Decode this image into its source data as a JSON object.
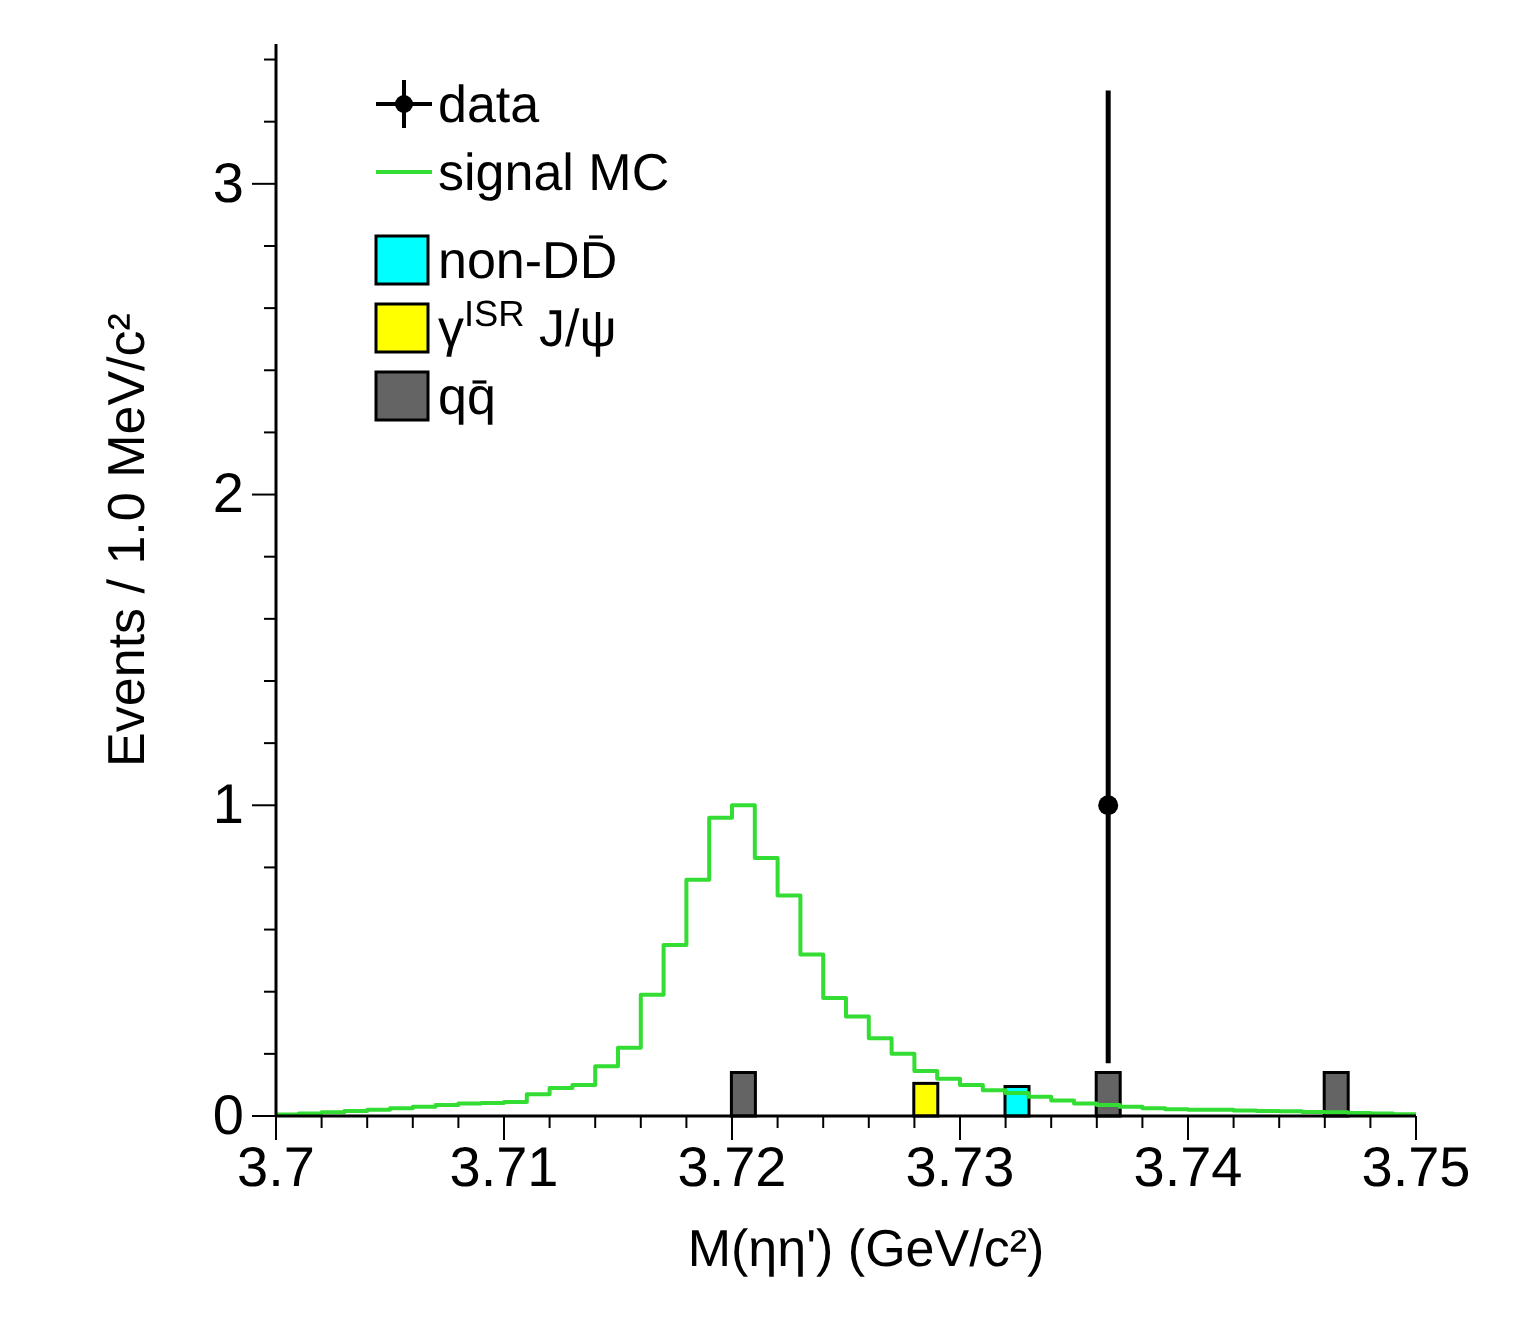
{
  "chart_data": {
    "type": "bar",
    "xlabel": "M(ηη') (GeV/c²)",
    "ylabel": "Events / 1.0 MeV/c²",
    "legend": "top left",
    "series": [
      {
        "name": "data",
        "type": "scatter",
        "marker": "circle",
        "color": "#000000",
        "x": [
          3.7365
        ],
        "values": [
          1
        ],
        "errors": [
          [
            0.17,
            3.3
          ]
        ]
      },
      {
        "name": "signal MC",
        "type": "step",
        "color": "#33dd33",
        "x": [
          3.7,
          3.701,
          3.702,
          3.703,
          3.704,
          3.705,
          3.706,
          3.707,
          3.708,
          3.709,
          3.71,
          3.711,
          3.712,
          3.713,
          3.714,
          3.715,
          3.716,
          3.717,
          3.718,
          3.719,
          3.72,
          3.721,
          3.722,
          3.723,
          3.724,
          3.725,
          3.726,
          3.727,
          3.728,
          3.729,
          3.73,
          3.731,
          3.732,
          3.733,
          3.734,
          3.735,
          3.736,
          3.737,
          3.738,
          3.739,
          3.74,
          3.741,
          3.742,
          3.743,
          3.744,
          3.745,
          3.746,
          3.747,
          3.748,
          3.749,
          3.75
        ],
        "values": [
          0.005,
          0.008,
          0.012,
          0.016,
          0.02,
          0.025,
          0.03,
          0.035,
          0.04,
          0.042,
          0.045,
          0.07,
          0.09,
          0.1,
          0.16,
          0.22,
          0.39,
          0.55,
          0.76,
          0.96,
          1.0,
          0.83,
          0.71,
          0.52,
          0.38,
          0.32,
          0.25,
          0.2,
          0.145,
          0.12,
          0.1,
          0.083,
          0.074,
          0.062,
          0.05,
          0.04,
          0.035,
          0.03,
          0.025,
          0.022,
          0.02,
          0.02,
          0.018,
          0.016,
          0.015,
          0.013,
          0.012,
          0.01,
          0.008,
          0.006,
          0.006
        ]
      },
      {
        "name": "non-DD̄",
        "type": "bar",
        "color": "#00ffff",
        "x": [
          3.7325
        ],
        "values": [
          0.095
        ]
      },
      {
        "name": "γ$^{ISR}$ J/ψ",
        "type": "bar",
        "color": "#ffff00",
        "x": [
          3.7285
        ],
        "values": [
          0.105
        ]
      },
      {
        "name": "qq̄",
        "type": "bar",
        "color": "#646464",
        "x": [
          3.7205,
          3.7365,
          3.7465
        ],
        "values": [
          0.14,
          0.14,
          0.14
        ]
      }
    ],
    "xlim": [
      3.7,
      3.75
    ],
    "xticks": [
      3.7,
      {
        "value": 3.702,
        "label": null
      },
      {
        "value": 3.704,
        "label": null
      },
      {
        "value": 3.706,
        "label": null
      },
      {
        "value": 3.708,
        "label": null
      },
      3.71,
      {
        "value": 3.712,
        "label": null
      },
      {
        "value": 3.714,
        "label": null
      },
      {
        "value": 3.716,
        "label": null
      },
      {
        "value": 3.718,
        "label": null
      },
      3.72,
      {
        "value": 3.722,
        "label": null
      },
      {
        "value": 3.724,
        "label": null
      },
      {
        "value": 3.726,
        "label": null
      },
      {
        "value": 3.728,
        "label": null
      },
      3.73,
      {
        "value": 3.732,
        "label": null
      },
      {
        "value": 3.734,
        "label": null
      },
      {
        "value": 3.736,
        "label": null
      },
      {
        "value": 3.738,
        "label": null
      },
      3.74,
      {
        "value": 3.742,
        "label": null
      },
      {
        "value": 3.744,
        "label": null
      },
      {
        "value": 3.746,
        "label": null
      },
      {
        "value": 3.748,
        "label": null
      },
      3.75
    ],
    "ylim": [
      0,
      3.45
    ],
    "yticks": [
      0,
      {
        "value": 0.2,
        "label": null
      },
      {
        "value": 0.4,
        "label": null
      },
      {
        "value": 0.6,
        "label": null
      },
      {
        "value": 0.8,
        "label": null
      },
      1,
      {
        "value": 1.2,
        "label": null
      },
      {
        "value": 1.4,
        "label": null
      },
      {
        "value": 1.6,
        "label": null
      },
      {
        "value": 1.8,
        "label": null
      },
      2,
      {
        "value": 2.2,
        "label": null
      },
      {
        "value": 2.4,
        "label": null
      },
      {
        "value": 2.6,
        "label": null
      },
      {
        "value": 2.8,
        "label": null
      },
      3,
      {
        "value": 3.2,
        "label": null
      },
      {
        "value": 3.4,
        "label": null
      }
    ]
  }
}
